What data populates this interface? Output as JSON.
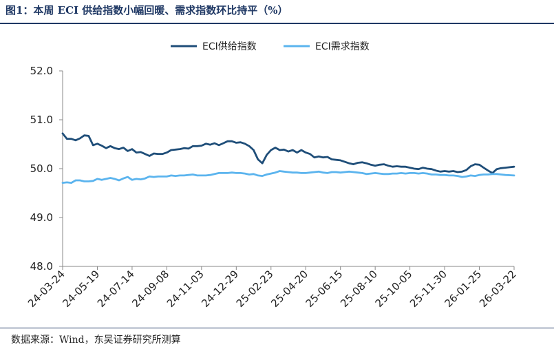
{
  "header": {
    "title": "图1：本周 ECI 供给指数小幅回暖、需求指数环比持平（%）"
  },
  "footer": {
    "source": "数据来源：Wind，东吴证券研究所测算"
  },
  "chart_data": {
    "type": "line",
    "title": "",
    "xlabel": "",
    "ylabel": "",
    "ylim": [
      48.0,
      52.0
    ],
    "yticks": [
      "52.0",
      "51.0",
      "50.0",
      "49.0",
      "48.0"
    ],
    "xlim": [
      "2024-03-24",
      "2026-03-22"
    ],
    "xtick_labels": [
      "24-03-24",
      "24-05-19",
      "24-07-14",
      "24-09-08",
      "24-11-03",
      "24-12-29",
      "25-02-23",
      "25-04-20",
      "25-06-15",
      "25-08-10",
      "25-10-05",
      "25-11-30",
      "26-01-25",
      "26-03-22"
    ],
    "legend_position": "top-center",
    "series": [
      {
        "name": "ECI供给指数",
        "color": "#1f4e79",
        "points": [
          [
            "2024-03-24",
            50.72
          ],
          [
            "2024-03-31",
            50.61
          ],
          [
            "2024-04-07",
            50.61
          ],
          [
            "2024-04-14",
            50.58
          ],
          [
            "2024-04-21",
            50.62
          ],
          [
            "2024-04-28",
            50.68
          ],
          [
            "2024-05-05",
            50.67
          ],
          [
            "2024-05-12",
            50.48
          ],
          [
            "2024-05-19",
            50.51
          ],
          [
            "2024-05-26",
            50.47
          ],
          [
            "2024-06-02",
            50.42
          ],
          [
            "2024-06-09",
            50.46
          ],
          [
            "2024-06-16",
            50.42
          ],
          [
            "2024-06-23",
            50.4
          ],
          [
            "2024-06-30",
            50.43
          ],
          [
            "2024-07-07",
            50.36
          ],
          [
            "2024-07-14",
            50.4
          ],
          [
            "2024-07-21",
            50.33
          ],
          [
            "2024-07-28",
            50.34
          ],
          [
            "2024-08-04",
            50.3
          ],
          [
            "2024-08-11",
            50.26
          ],
          [
            "2024-08-18",
            50.31
          ],
          [
            "2024-08-25",
            50.3
          ],
          [
            "2024-09-01",
            50.3
          ],
          [
            "2024-09-08",
            50.33
          ],
          [
            "2024-09-15",
            50.38
          ],
          [
            "2024-09-22",
            50.39
          ],
          [
            "2024-09-29",
            50.4
          ],
          [
            "2024-10-06",
            50.42
          ],
          [
            "2024-10-13",
            50.41
          ],
          [
            "2024-10-20",
            50.46
          ],
          [
            "2024-10-27",
            50.46
          ],
          [
            "2024-11-03",
            50.47
          ],
          [
            "2024-11-10",
            50.51
          ],
          [
            "2024-11-17",
            50.49
          ],
          [
            "2024-11-24",
            50.52
          ],
          [
            "2024-12-01",
            50.48
          ],
          [
            "2024-12-08",
            50.52
          ],
          [
            "2024-12-15",
            50.56
          ],
          [
            "2024-12-22",
            50.56
          ],
          [
            "2024-12-29",
            50.53
          ],
          [
            "2025-01-05",
            50.54
          ],
          [
            "2025-01-12",
            50.51
          ],
          [
            "2025-01-19",
            50.46
          ],
          [
            "2025-01-26",
            50.38
          ],
          [
            "2025-02-02",
            50.19
          ],
          [
            "2025-02-09",
            50.11
          ],
          [
            "2025-02-16",
            50.28
          ],
          [
            "2025-02-23",
            50.38
          ],
          [
            "2025-03-02",
            50.43
          ],
          [
            "2025-03-09",
            50.38
          ],
          [
            "2025-03-16",
            50.39
          ],
          [
            "2025-03-23",
            50.35
          ],
          [
            "2025-03-30",
            50.38
          ],
          [
            "2025-04-06",
            50.33
          ],
          [
            "2025-04-13",
            50.38
          ],
          [
            "2025-04-20",
            50.33
          ],
          [
            "2025-04-27",
            50.3
          ],
          [
            "2025-05-04",
            50.23
          ],
          [
            "2025-05-11",
            50.25
          ],
          [
            "2025-05-18",
            50.23
          ],
          [
            "2025-05-25",
            50.24
          ],
          [
            "2025-06-01",
            50.19
          ],
          [
            "2025-06-08",
            50.18
          ],
          [
            "2025-06-15",
            50.17
          ],
          [
            "2025-06-22",
            50.14
          ],
          [
            "2025-06-29",
            50.11
          ],
          [
            "2025-07-06",
            50.09
          ],
          [
            "2025-07-13",
            50.12
          ],
          [
            "2025-07-20",
            50.13
          ],
          [
            "2025-07-27",
            50.11
          ],
          [
            "2025-08-03",
            50.08
          ],
          [
            "2025-08-10",
            50.06
          ],
          [
            "2025-08-17",
            50.08
          ],
          [
            "2025-08-24",
            50.09
          ],
          [
            "2025-08-31",
            50.06
          ],
          [
            "2025-09-07",
            50.04
          ],
          [
            "2025-09-14",
            50.05
          ],
          [
            "2025-09-21",
            50.04
          ],
          [
            "2025-09-28",
            50.04
          ],
          [
            "2025-10-05",
            50.02
          ],
          [
            "2025-10-12",
            50.0
          ],
          [
            "2025-10-19",
            49.99
          ],
          [
            "2025-10-26",
            50.02
          ],
          [
            "2025-11-02",
            50.0
          ],
          [
            "2025-11-09",
            49.99
          ],
          [
            "2025-11-16",
            49.96
          ],
          [
            "2025-11-23",
            49.94
          ],
          [
            "2025-11-30",
            49.95
          ],
          [
            "2025-12-07",
            49.94
          ],
          [
            "2025-12-14",
            49.95
          ],
          [
            "2025-12-21",
            49.93
          ],
          [
            "2025-12-28",
            49.94
          ],
          [
            "2026-01-04",
            49.97
          ],
          [
            "2026-01-11",
            50.05
          ],
          [
            "2026-01-18",
            50.09
          ],
          [
            "2026-01-25",
            50.08
          ],
          [
            "2026-02-01",
            50.02
          ],
          [
            "2026-02-08",
            49.96
          ],
          [
            "2026-02-15",
            49.91
          ],
          [
            "2026-02-22",
            49.99
          ],
          [
            "2026-03-01",
            50.01
          ],
          [
            "2026-03-08",
            50.02
          ],
          [
            "2026-03-22",
            50.04
          ]
        ]
      },
      {
        "name": "ECI需求指数",
        "color": "#5bb4ee",
        "points": [
          [
            "2024-03-24",
            49.71
          ],
          [
            "2024-03-31",
            49.72
          ],
          [
            "2024-04-07",
            49.71
          ],
          [
            "2024-04-14",
            49.76
          ],
          [
            "2024-04-21",
            49.76
          ],
          [
            "2024-04-28",
            49.74
          ],
          [
            "2024-05-05",
            49.74
          ],
          [
            "2024-05-12",
            49.75
          ],
          [
            "2024-05-19",
            49.79
          ],
          [
            "2024-05-26",
            49.77
          ],
          [
            "2024-06-02",
            49.79
          ],
          [
            "2024-06-09",
            49.81
          ],
          [
            "2024-06-16",
            49.79
          ],
          [
            "2024-06-23",
            49.76
          ],
          [
            "2024-06-30",
            49.8
          ],
          [
            "2024-07-07",
            49.83
          ],
          [
            "2024-07-14",
            49.77
          ],
          [
            "2024-07-21",
            49.79
          ],
          [
            "2024-07-28",
            49.78
          ],
          [
            "2024-08-04",
            49.8
          ],
          [
            "2024-08-11",
            49.84
          ],
          [
            "2024-08-18",
            49.83
          ],
          [
            "2024-08-25",
            49.84
          ],
          [
            "2024-09-01",
            49.84
          ],
          [
            "2024-09-08",
            49.84
          ],
          [
            "2024-09-15",
            49.86
          ],
          [
            "2024-09-22",
            49.85
          ],
          [
            "2024-09-29",
            49.86
          ],
          [
            "2024-10-06",
            49.86
          ],
          [
            "2024-10-13",
            49.87
          ],
          [
            "2024-10-20",
            49.88
          ],
          [
            "2024-10-27",
            49.86
          ],
          [
            "2024-11-03",
            49.86
          ],
          [
            "2024-11-10",
            49.86
          ],
          [
            "2024-11-17",
            49.87
          ],
          [
            "2024-11-24",
            49.89
          ],
          [
            "2024-12-01",
            49.91
          ],
          [
            "2024-12-08",
            49.91
          ],
          [
            "2024-12-15",
            49.91
          ],
          [
            "2024-12-22",
            49.92
          ],
          [
            "2024-12-29",
            49.91
          ],
          [
            "2025-01-05",
            49.91
          ],
          [
            "2025-01-12",
            49.9
          ],
          [
            "2025-01-19",
            49.88
          ],
          [
            "2025-01-26",
            49.89
          ],
          [
            "2025-02-02",
            49.86
          ],
          [
            "2025-02-09",
            49.85
          ],
          [
            "2025-02-16",
            49.88
          ],
          [
            "2025-02-23",
            49.9
          ],
          [
            "2025-03-02",
            49.92
          ],
          [
            "2025-03-09",
            49.95
          ],
          [
            "2025-03-16",
            49.94
          ],
          [
            "2025-03-23",
            49.93
          ],
          [
            "2025-03-30",
            49.92
          ],
          [
            "2025-04-06",
            49.92
          ],
          [
            "2025-04-13",
            49.91
          ],
          [
            "2025-04-20",
            49.91
          ],
          [
            "2025-04-27",
            49.92
          ],
          [
            "2025-05-04",
            49.93
          ],
          [
            "2025-05-11",
            49.94
          ],
          [
            "2025-05-18",
            49.92
          ],
          [
            "2025-05-25",
            49.91
          ],
          [
            "2025-06-01",
            49.93
          ],
          [
            "2025-06-08",
            49.93
          ],
          [
            "2025-06-15",
            49.92
          ],
          [
            "2025-06-22",
            49.93
          ],
          [
            "2025-06-29",
            49.94
          ],
          [
            "2025-07-06",
            49.93
          ],
          [
            "2025-07-13",
            49.92
          ],
          [
            "2025-07-20",
            49.91
          ],
          [
            "2025-07-27",
            49.89
          ],
          [
            "2025-08-03",
            49.9
          ],
          [
            "2025-08-10",
            49.91
          ],
          [
            "2025-08-17",
            49.9
          ],
          [
            "2025-08-24",
            49.89
          ],
          [
            "2025-08-31",
            49.89
          ],
          [
            "2025-09-07",
            49.9
          ],
          [
            "2025-09-14",
            49.9
          ],
          [
            "2025-09-21",
            49.91
          ],
          [
            "2025-09-28",
            49.9
          ],
          [
            "2025-10-05",
            49.91
          ],
          [
            "2025-10-12",
            49.91
          ],
          [
            "2025-10-19",
            49.9
          ],
          [
            "2025-10-26",
            49.91
          ],
          [
            "2025-11-02",
            49.9
          ],
          [
            "2025-11-09",
            49.88
          ],
          [
            "2025-11-16",
            49.88
          ],
          [
            "2025-11-23",
            49.87
          ],
          [
            "2025-11-30",
            49.87
          ],
          [
            "2025-12-07",
            49.86
          ],
          [
            "2025-12-14",
            49.86
          ],
          [
            "2025-12-21",
            49.85
          ],
          [
            "2025-12-28",
            49.83
          ],
          [
            "2026-01-04",
            49.84
          ],
          [
            "2026-01-11",
            49.86
          ],
          [
            "2026-01-18",
            49.85
          ],
          [
            "2026-01-25",
            49.87
          ],
          [
            "2026-02-01",
            49.88
          ],
          [
            "2026-02-08",
            49.88
          ],
          [
            "2026-02-15",
            49.89
          ],
          [
            "2026-02-22",
            49.89
          ],
          [
            "2026-03-01",
            49.88
          ],
          [
            "2026-03-08",
            49.87
          ],
          [
            "2026-03-22",
            49.86
          ]
        ]
      }
    ]
  }
}
